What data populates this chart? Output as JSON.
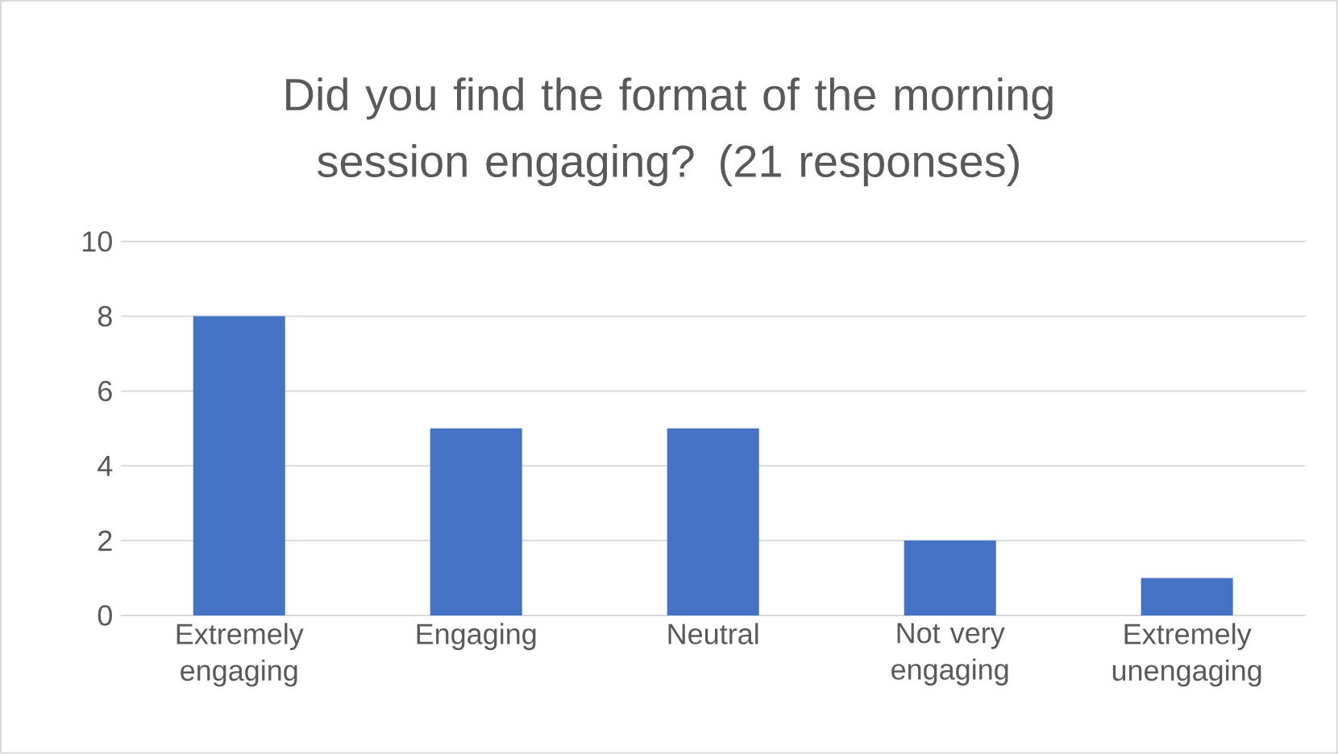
{
  "chart_data": {
    "type": "bar",
    "title": "Did you find the format of the morning session engaging? (21 responses)",
    "categories": [
      "Extremely engaging",
      "Engaging",
      "Neutral",
      "Not very engaging",
      "Extremely unengaging"
    ],
    "values": [
      8,
      5,
      5,
      2,
      1
    ],
    "color": "#4472c4",
    "ylim": [
      0,
      10
    ],
    "yticks": [
      0,
      2,
      4,
      6,
      8,
      10
    ],
    "grid": "y"
  }
}
